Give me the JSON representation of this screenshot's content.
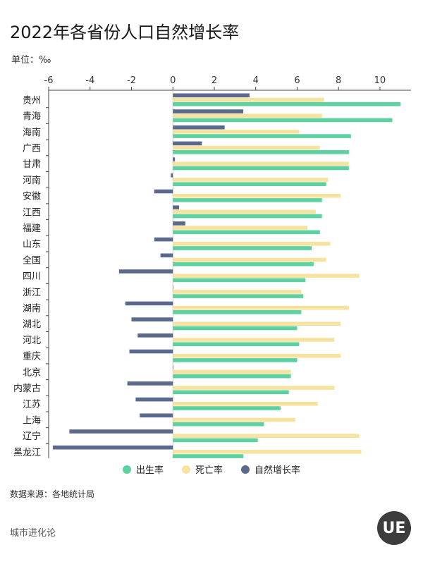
{
  "header": {
    "title": "2022年各省份人口自然增长率",
    "unit": "单位：‰"
  },
  "colors": {
    "birth": "#5dd2a0",
    "death": "#f6e3a0",
    "natural": "#5b6a8c"
  },
  "legend": [
    "出生率",
    "死亡率",
    "自然增长率"
  ],
  "footer": {
    "source": "数据来源：各地统计局",
    "brand": "城市进化论",
    "logo_text": "UE"
  },
  "chart_data": {
    "type": "bar",
    "orientation": "horizontal",
    "title": "2022年各省份人口自然增长率",
    "xlabel": "",
    "ylabel": "",
    "unit": "‰",
    "xlim": [
      -6,
      11.5
    ],
    "xticks": [
      -6,
      -4,
      -2,
      0,
      2,
      4,
      6,
      8,
      10
    ],
    "categories": [
      "贵州",
      "青海",
      "海南",
      "广西",
      "甘肃",
      "河南",
      "安徽",
      "江西",
      "福建",
      "山东",
      "全国",
      "四川",
      "浙江",
      "湖南",
      "湖北",
      "河北",
      "重庆",
      "北京",
      "内蒙古",
      "江苏",
      "上海",
      "辽宁",
      "黑龙江"
    ],
    "series": [
      {
        "name": "自然增长率",
        "values": [
          3.7,
          3.4,
          2.5,
          1.4,
          0.1,
          -0.1,
          -0.9,
          0.3,
          0.6,
          -0.9,
          -0.6,
          -2.6,
          0.0,
          -2.3,
          -2.0,
          -1.7,
          -2.1,
          0.0,
          -2.2,
          -1.8,
          -1.6,
          -5.0,
          -5.8
        ]
      },
      {
        "name": "死亡率",
        "values": [
          7.3,
          7.2,
          6.1,
          7.1,
          8.5,
          7.5,
          8.1,
          6.9,
          6.5,
          7.6,
          7.4,
          9.0,
          6.2,
          8.5,
          8.1,
          7.8,
          8.1,
          5.7,
          7.8,
          7.0,
          5.9,
          9.0,
          9.1
        ]
      },
      {
        "name": "出生率",
        "values": [
          11.0,
          10.6,
          8.6,
          8.5,
          8.5,
          7.4,
          7.2,
          7.2,
          7.1,
          6.7,
          6.8,
          6.4,
          6.3,
          6.2,
          6.0,
          6.1,
          6.0,
          5.7,
          5.6,
          5.2,
          4.4,
          4.1,
          3.4
        ]
      }
    ]
  }
}
